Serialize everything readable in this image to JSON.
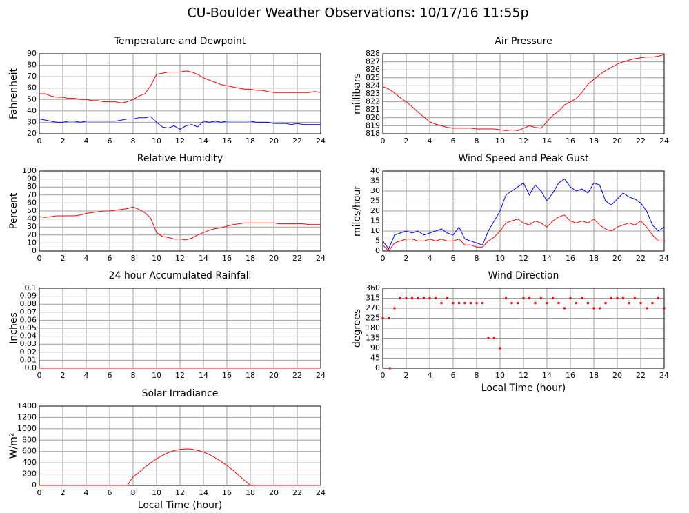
{
  "title": "CU-Boulder Weather Observations: 10/17/16 11:55p",
  "chart_data": [
    {
      "type": "line",
      "title": "Temperature and Dewpoint",
      "ylabel": "Fahrenheit",
      "x": [
        0,
        0.5,
        1,
        1.5,
        2,
        2.5,
        3,
        3.5,
        4,
        4.5,
        5,
        5.5,
        6,
        6.5,
        7,
        7.5,
        8,
        8.5,
        9,
        9.5,
        10,
        10.5,
        11,
        11.5,
        12,
        12.5,
        13,
        13.5,
        14,
        14.5,
        15,
        15.5,
        16,
        16.5,
        17,
        17.5,
        18,
        18.5,
        19,
        19.5,
        20,
        20.5,
        21,
        21.5,
        22,
        22.5,
        23,
        23.5,
        24
      ],
      "series": [
        {
          "color": "#ff0000",
          "values": [
            55,
            55,
            53,
            52,
            52,
            51,
            51,
            50,
            50,
            49,
            49,
            48,
            48,
            48,
            47,
            48,
            50,
            53,
            55,
            62,
            72,
            73,
            74,
            74,
            74,
            75,
            74,
            72,
            69,
            67,
            65,
            63,
            62,
            61,
            60,
            59,
            59,
            58,
            58,
            57,
            56,
            56,
            56,
            56,
            56,
            56,
            56,
            57,
            56
          ]
        },
        {
          "color": "#0000ff",
          "values": [
            33,
            32,
            31,
            30,
            30,
            31,
            31,
            30,
            31,
            31,
            31,
            31,
            31,
            31,
            32,
            33,
            33,
            34,
            34,
            35,
            30,
            26,
            25,
            27,
            24,
            27,
            28,
            26,
            31,
            30,
            31,
            30,
            31,
            31,
            31,
            31,
            31,
            30,
            30,
            30,
            29,
            29,
            29,
            28,
            29,
            28,
            28,
            28,
            28
          ]
        }
      ],
      "xlim": [
        0,
        24
      ],
      "ylim": [
        20,
        90
      ],
      "xticks": [
        0,
        2,
        4,
        6,
        8,
        10,
        12,
        14,
        16,
        18,
        20,
        22,
        24
      ],
      "yticks": [
        20,
        30,
        40,
        50,
        60,
        70,
        80,
        90
      ],
      "grid": true
    },
    {
      "type": "line",
      "title": "Air Pressure",
      "ylabel": "millibars",
      "x": [
        0,
        0.5,
        1,
        1.5,
        2,
        2.5,
        3,
        3.5,
        4,
        4.5,
        5,
        5.5,
        6,
        6.5,
        7,
        7.5,
        8,
        8.5,
        9,
        9.5,
        10,
        10.5,
        11,
        11.5,
        12,
        12.5,
        13,
        13.5,
        14,
        14.5,
        15,
        15.5,
        16,
        16.5,
        17,
        17.5,
        18,
        18.5,
        19,
        19.5,
        20,
        20.5,
        21,
        21.5,
        22,
        22.5,
        23,
        23.5,
        24
      ],
      "series": [
        {
          "color": "#ff0000",
          "values": [
            823.9,
            823.6,
            823.1,
            822.5,
            822,
            821.4,
            820.7,
            820.1,
            819.5,
            819.2,
            819,
            818.8,
            818.7,
            818.7,
            818.7,
            818.7,
            818.6,
            818.6,
            818.6,
            818.6,
            818.5,
            818.4,
            818.5,
            818.4,
            818.7,
            819,
            818.8,
            818.7,
            819.5,
            820.3,
            820.8,
            821.6,
            822,
            822.4,
            823.2,
            824.2,
            824.8,
            825.4,
            825.9,
            826.3,
            826.7,
            827,
            827.2,
            827.4,
            827.5,
            827.6,
            827.6,
            827.7,
            827.9
          ]
        }
      ],
      "xlim": [
        0,
        24
      ],
      "ylim": [
        818,
        828
      ],
      "xticks": [
        0,
        2,
        4,
        6,
        8,
        10,
        12,
        14,
        16,
        18,
        20,
        22,
        24
      ],
      "yticks": [
        818,
        819,
        820,
        821,
        822,
        823,
        824,
        825,
        826,
        827,
        828
      ],
      "grid": true
    },
    {
      "type": "line",
      "title": "Relative Humidity",
      "ylabel": "Percent",
      "x": [
        0,
        0.5,
        1,
        1.5,
        2,
        2.5,
        3,
        3.5,
        4,
        4.5,
        5,
        5.5,
        6,
        6.5,
        7,
        7.5,
        8,
        8.5,
        9,
        9.5,
        10,
        10.5,
        11,
        11.5,
        12,
        12.5,
        13,
        13.5,
        14,
        14.5,
        15,
        15.5,
        16,
        16.5,
        17,
        17.5,
        18,
        18.5,
        19,
        19.5,
        20,
        20.5,
        21,
        21.5,
        22,
        22.5,
        23,
        23.5,
        24
      ],
      "series": [
        {
          "color": "#ff0000",
          "values": [
            43,
            42,
            43,
            44,
            44,
            44,
            44,
            45,
            47,
            48,
            49,
            50,
            50,
            51,
            52,
            53,
            55,
            52,
            48,
            41,
            23,
            18,
            17,
            15,
            15,
            14,
            16,
            20,
            23,
            26,
            28,
            29,
            31,
            33,
            34,
            35,
            35,
            35,
            35,
            35,
            35,
            34,
            34,
            34,
            34,
            34,
            33,
            33,
            33
          ]
        }
      ],
      "xlim": [
        0,
        24
      ],
      "ylim": [
        0,
        100
      ],
      "xticks": [
        0,
        2,
        4,
        6,
        8,
        10,
        12,
        14,
        16,
        18,
        20,
        22,
        24
      ],
      "yticks": [
        0,
        10,
        20,
        30,
        40,
        50,
        60,
        70,
        80,
        90,
        100
      ],
      "grid": true
    },
    {
      "type": "line",
      "title": "Wind Speed and Peak Gust",
      "ylabel": "miles/hour",
      "x": [
        0,
        0.5,
        1,
        1.5,
        2,
        2.5,
        3,
        3.5,
        4,
        4.5,
        5,
        5.5,
        6,
        6.5,
        7,
        7.5,
        8,
        8.5,
        9,
        9.5,
        10,
        10.5,
        11,
        11.5,
        12,
        12.5,
        13,
        13.5,
        14,
        14.5,
        15,
        15.5,
        16,
        16.5,
        17,
        17.5,
        18,
        18.5,
        19,
        19.5,
        20,
        20.5,
        21,
        21.5,
        22,
        22.5,
        23,
        23.5,
        24
      ],
      "series": [
        {
          "color": "#0000ff",
          "values": [
            5,
            1,
            8,
            9,
            10,
            9,
            10,
            8,
            9,
            10,
            11,
            9,
            8,
            12,
            6,
            5,
            4,
            3,
            10,
            15,
            20,
            28,
            30,
            32,
            34,
            28,
            33,
            30,
            25,
            29,
            34,
            36,
            32,
            30,
            31,
            29,
            34,
            33,
            25,
            23,
            26,
            29,
            27,
            26,
            24,
            20,
            13,
            10,
            12
          ]
        },
        {
          "color": "#ff0000",
          "values": [
            3,
            0,
            4,
            5,
            6,
            6,
            5,
            5,
            6,
            5,
            6,
            5,
            5,
            6,
            3,
            3,
            2,
            2,
            5,
            7,
            10,
            14,
            15,
            16,
            14,
            13,
            15,
            14,
            12,
            15,
            17,
            18,
            15,
            14,
            15,
            14,
            16,
            13,
            11,
            10,
            12,
            13,
            14,
            13,
            15,
            12,
            8,
            5,
            5
          ]
        }
      ],
      "xlim": [
        0,
        24
      ],
      "ylim": [
        0,
        40
      ],
      "xticks": [
        0,
        2,
        4,
        6,
        8,
        10,
        12,
        14,
        16,
        18,
        20,
        22,
        24
      ],
      "yticks": [
        0,
        5,
        10,
        15,
        20,
        25,
        30,
        35,
        40
      ],
      "grid": true
    },
    {
      "type": "line",
      "title": "24 hour Accumulated Rainfall",
      "ylabel": "Inches",
      "x": [
        0,
        24
      ],
      "series": [
        {
          "color": "#ff0000",
          "values": [
            0,
            0
          ]
        }
      ],
      "xlim": [
        0,
        24
      ],
      "ylim": [
        0,
        0.1
      ],
      "xticks": [
        0,
        2,
        4,
        6,
        8,
        10,
        12,
        14,
        16,
        18,
        20,
        22,
        24
      ],
      "yticks": [
        {
          "value": 0,
          "label": "0.0"
        },
        0.01,
        0.02,
        0.03,
        0.04,
        0.05,
        0.06,
        0.07,
        0.08,
        0.09,
        0.1
      ],
      "grid": true
    },
    {
      "type": "scatter",
      "title": "Wind Direction",
      "ylabel": "degrees",
      "xlabel": "Local Time (hour)",
      "x": [
        0,
        0.5,
        0.6,
        1,
        1.5,
        2,
        2.5,
        3,
        3.5,
        4,
        4.5,
        5,
        5.5,
        6,
        6.5,
        7,
        7.5,
        8,
        8.5,
        9,
        9.5,
        10,
        10.5,
        11,
        11.5,
        12,
        12.5,
        13,
        13.5,
        14,
        14.5,
        15,
        15.5,
        16,
        16.5,
        17,
        17.5,
        18,
        18.5,
        19,
        19.5,
        20,
        20.5,
        21,
        21.5,
        22,
        22.5,
        23,
        23.5,
        24
      ],
      "series": [
        {
          "color": "#ff0000",
          "values": [
            225,
            225,
            0,
            270,
            315,
            315,
            315,
            315,
            315,
            315,
            315,
            293,
            315,
            293,
            293,
            293,
            293,
            293,
            293,
            135,
            135,
            90,
            315,
            293,
            293,
            315,
            315,
            293,
            315,
            293,
            315,
            293,
            270,
            315,
            293,
            315,
            293,
            270,
            270,
            293,
            315,
            315,
            315,
            293,
            315,
            293,
            270,
            293,
            315,
            270
          ]
        }
      ],
      "xlim": [
        0,
        24
      ],
      "ylim": [
        0,
        360
      ],
      "xticks": [
        0,
        2,
        4,
        6,
        8,
        10,
        12,
        14,
        16,
        18,
        20,
        22,
        24
      ],
      "yticks": [
        0,
        45,
        90,
        135,
        180,
        225,
        270,
        315,
        360
      ],
      "grid": true
    },
    {
      "type": "line",
      "title": "Solar Irradiance",
      "ylabel": "W/m²",
      "xlabel": "Local Time (hour)",
      "x": [
        0,
        0.5,
        1,
        1.5,
        2,
        2.5,
        3,
        3.5,
        4,
        4.5,
        5,
        5.5,
        6,
        6.5,
        7,
        7.5,
        8,
        8.5,
        9,
        9.5,
        10,
        10.5,
        11,
        11.5,
        12,
        12.5,
        13,
        13.5,
        14,
        14.5,
        15,
        15.5,
        16,
        16.5,
        17,
        17.5,
        18,
        18.5,
        19,
        19.5,
        20,
        20.5,
        21,
        21.5,
        22,
        22.5,
        23,
        23.5,
        24
      ],
      "series": [
        {
          "color": "#ff0000",
          "values": [
            0,
            0,
            0,
            0,
            0,
            0,
            0,
            0,
            0,
            0,
            0,
            0,
            0,
            0,
            0,
            0,
            150,
            230,
            320,
            400,
            470,
            530,
            580,
            615,
            635,
            645,
            640,
            620,
            590,
            545,
            490,
            425,
            350,
            270,
            180,
            90,
            5,
            0,
            0,
            0,
            0,
            0,
            0,
            0,
            0,
            0,
            0,
            0,
            0
          ]
        }
      ],
      "xlim": [
        0,
        24
      ],
      "ylim": [
        0,
        1400
      ],
      "xticks": [
        0,
        2,
        4,
        6,
        8,
        10,
        12,
        14,
        16,
        18,
        20,
        22,
        24
      ],
      "yticks": [
        0,
        200,
        400,
        600,
        800,
        1000,
        1200,
        1400
      ],
      "grid": true
    }
  ]
}
